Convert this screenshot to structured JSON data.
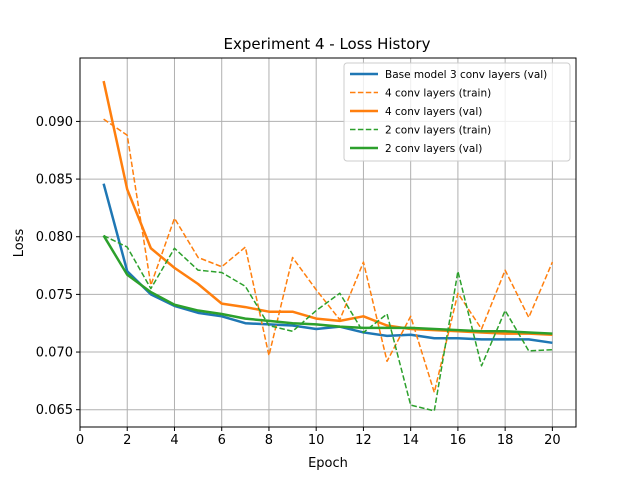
{
  "chart_data": {
    "type": "line",
    "title": "Experiment 4 - Loss History",
    "xlabel": "Epoch",
    "ylabel": "Loss",
    "xlim": [
      0,
      21
    ],
    "ylim": [
      0.0635,
      0.0955
    ],
    "xticks": [
      0,
      2,
      4,
      6,
      8,
      10,
      12,
      14,
      16,
      18,
      20
    ],
    "yticks": [
      0.065,
      0.07,
      0.075,
      0.08,
      0.085,
      0.09
    ],
    "xtick_labels": [
      "0",
      "2",
      "4",
      "6",
      "8",
      "10",
      "12",
      "14",
      "16",
      "18",
      "20"
    ],
    "ytick_labels": [
      "0.065",
      "0.070",
      "0.075",
      "0.080",
      "0.085",
      "0.090"
    ],
    "grid": true,
    "legend_position": "top-right",
    "x": [
      1,
      2,
      3,
      4,
      5,
      6,
      7,
      8,
      9,
      10,
      11,
      12,
      13,
      14,
      15,
      16,
      17,
      18,
      19,
      20
    ],
    "series": [
      {
        "name": "Base model 3 conv layers (val)",
        "color": "#1f77b4",
        "style": "solid",
        "values": [
          0.0846,
          0.077,
          0.075,
          0.074,
          0.0734,
          0.0731,
          0.0725,
          0.0724,
          0.0723,
          0.072,
          0.0722,
          0.0717,
          0.0714,
          0.0715,
          0.0712,
          0.0712,
          0.0711,
          0.0711,
          0.0711,
          0.0708
        ]
      },
      {
        "name": "4 conv layers (train)",
        "color": "#ff7f0e",
        "style": "dashed",
        "values": [
          0.0902,
          0.0888,
          0.0758,
          0.0816,
          0.0782,
          0.0774,
          0.0791,
          0.0697,
          0.0782,
          0.0754,
          0.0728,
          0.0778,
          0.0692,
          0.0731,
          0.0665,
          0.0751,
          0.072,
          0.0771,
          0.073,
          0.0778
        ]
      },
      {
        "name": "4 conv layers (val)",
        "color": "#ff7f0e",
        "style": "solid",
        "values": [
          0.0935,
          0.0841,
          0.079,
          0.0773,
          0.0759,
          0.0742,
          0.0739,
          0.0735,
          0.0735,
          0.0729,
          0.0727,
          0.0731,
          0.0723,
          0.072,
          0.0719,
          0.0718,
          0.0717,
          0.0716,
          0.0716,
          0.0715
        ]
      },
      {
        "name": "2 conv layers (train)",
        "color": "#2ca02c",
        "style": "dashed",
        "values": [
          0.0801,
          0.0791,
          0.0755,
          0.079,
          0.0771,
          0.0769,
          0.0757,
          0.0723,
          0.0718,
          0.0736,
          0.0751,
          0.0717,
          0.0733,
          0.0654,
          0.0649,
          0.077,
          0.0688,
          0.0736,
          0.0701,
          0.0702
        ]
      },
      {
        "name": "2 conv layers (val)",
        "color": "#2ca02c",
        "style": "solid",
        "values": [
          0.0801,
          0.0767,
          0.0752,
          0.0741,
          0.0736,
          0.0733,
          0.0729,
          0.0727,
          0.0725,
          0.0724,
          0.0722,
          0.0721,
          0.0721,
          0.0721,
          0.072,
          0.0719,
          0.0718,
          0.0718,
          0.0717,
          0.0716
        ]
      }
    ]
  }
}
